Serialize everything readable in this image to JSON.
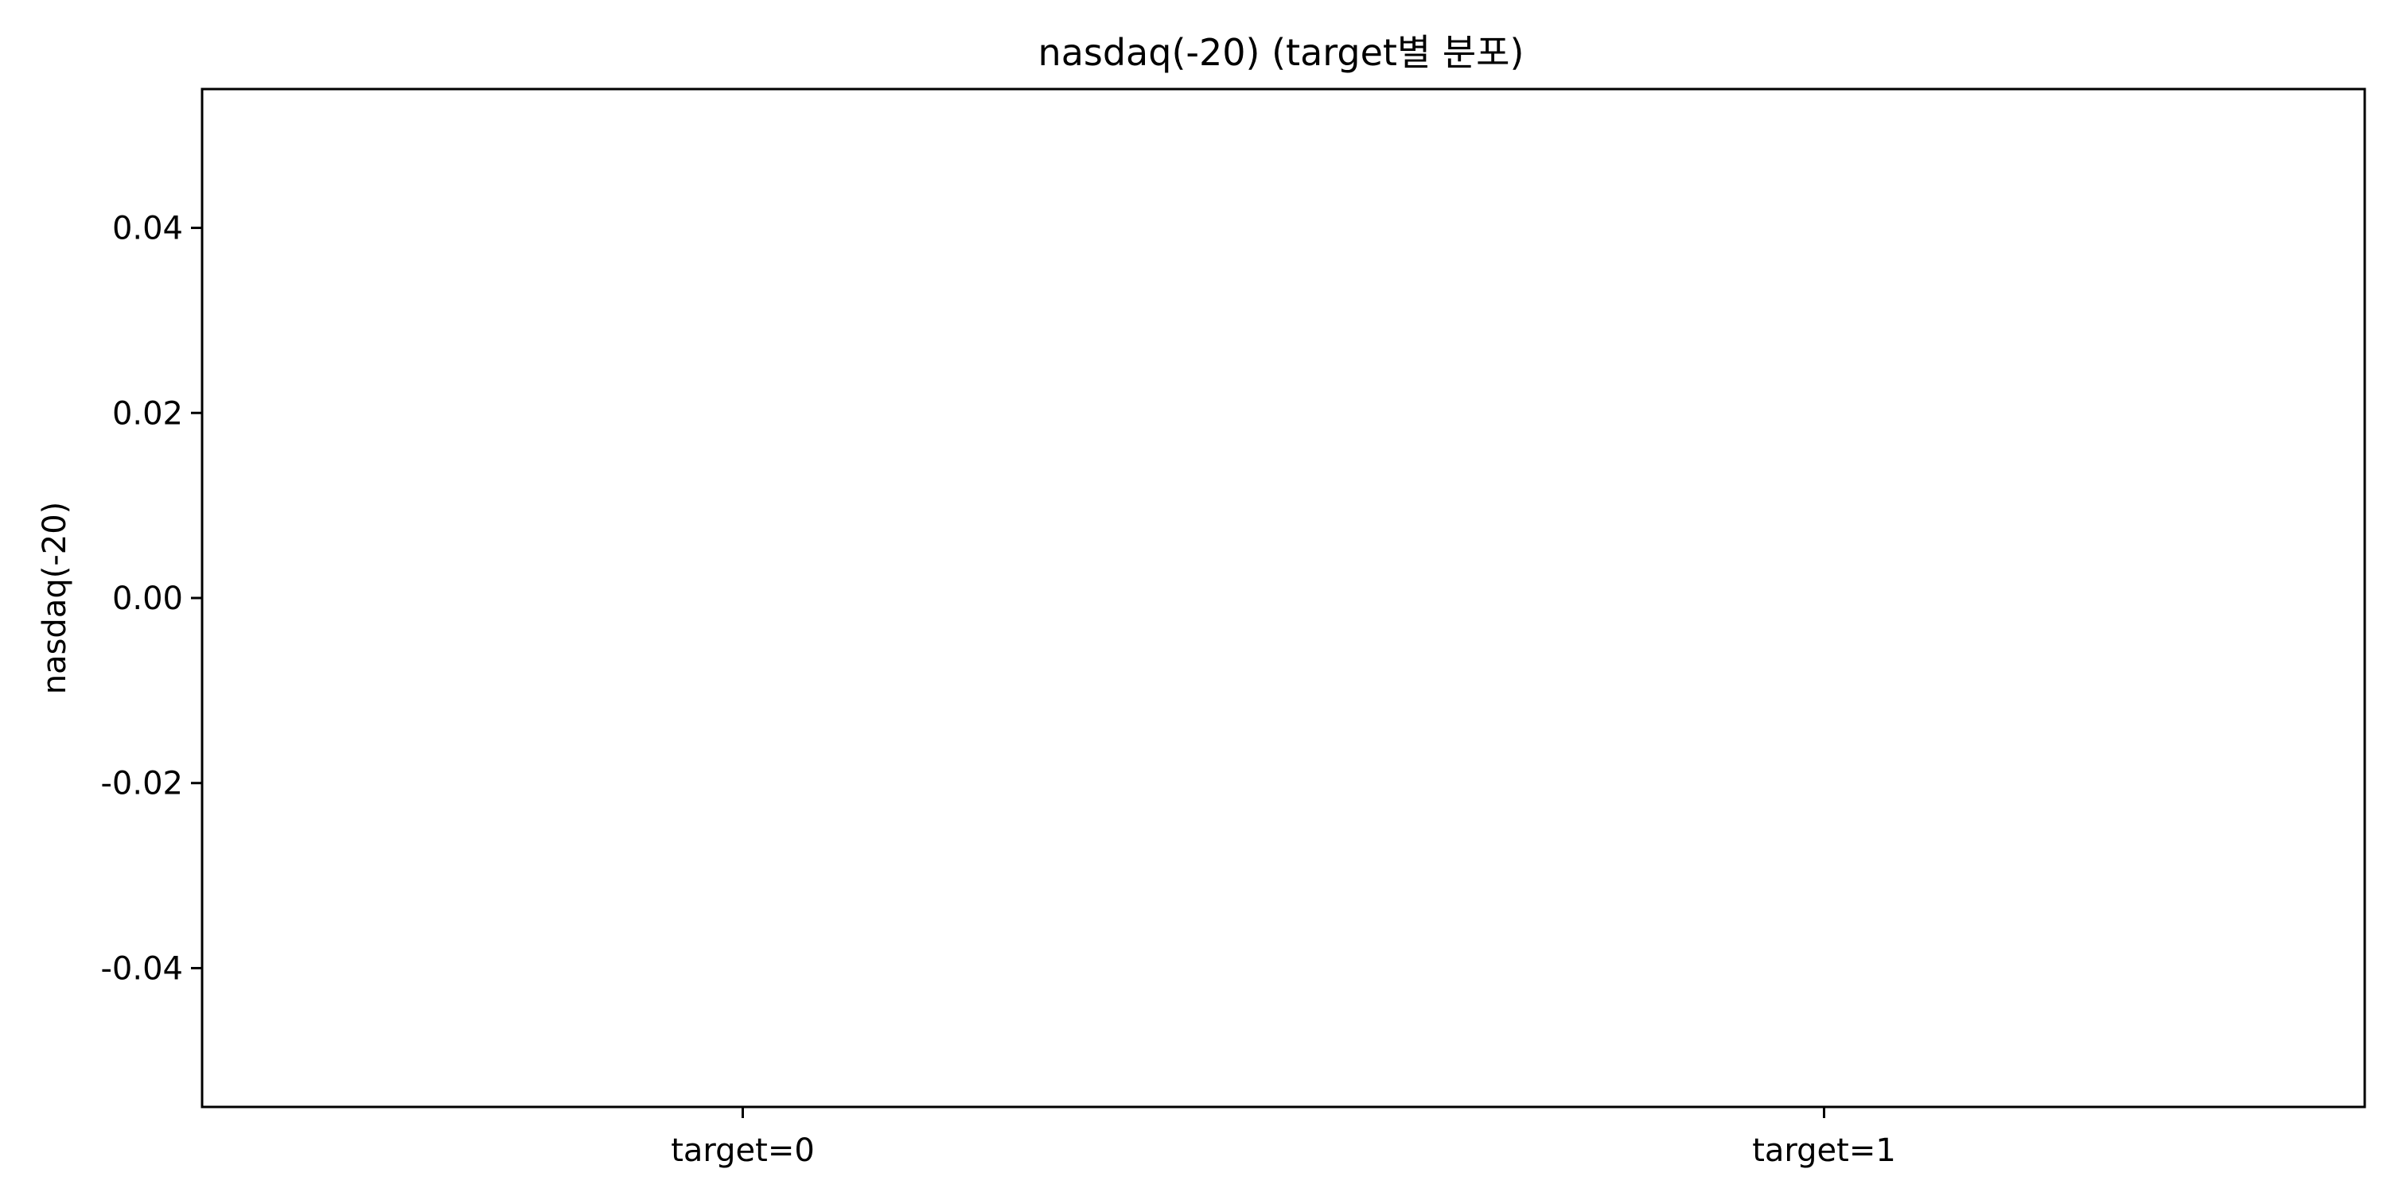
{
  "chart_data": {
    "type": "box",
    "title": "nasdaq(-20) (target별 분포)",
    "xlabel": "",
    "ylabel": "nasdaq(-20)",
    "categories": [
      "target=0",
      "target=1"
    ],
    "series": [],
    "ylim": [
      -0.055,
      0.055
    ],
    "yticks": [
      {
        "value": 0.04,
        "label": "0.04"
      },
      {
        "value": 0.02,
        "label": "0.02"
      },
      {
        "value": 0.0,
        "label": "0.00"
      },
      {
        "value": -0.02,
        "label": "-0.02"
      },
      {
        "value": -0.04,
        "label": "-0.04"
      }
    ],
    "grid": false,
    "legend": "none",
    "colors": {
      "axis": "#000000",
      "background": "#ffffff"
    }
  }
}
